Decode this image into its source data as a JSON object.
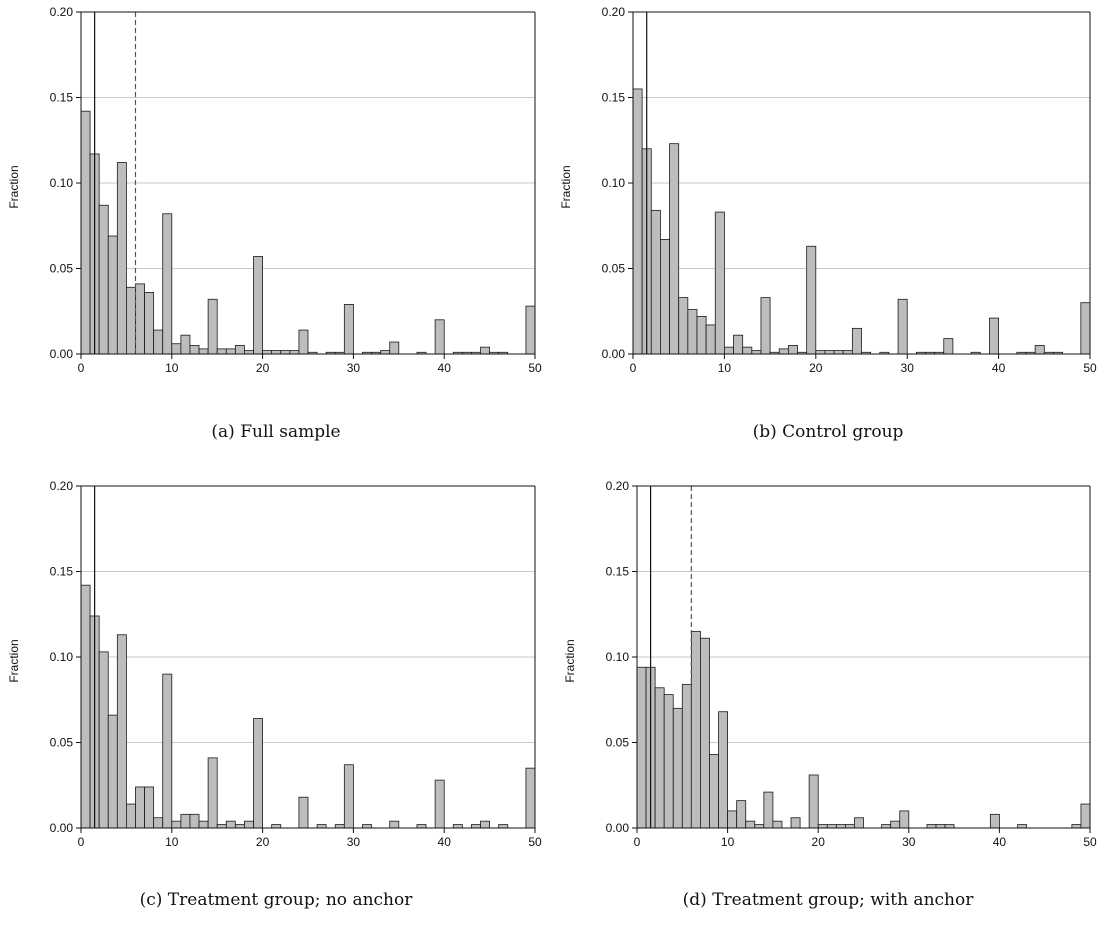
{
  "panels": [
    {
      "caption": "(a) Full sample",
      "chart_data": {
        "type": "bar",
        "ylabel": "Fraction",
        "xlabel": "",
        "xlim": [
          0,
          50
        ],
        "ylim": [
          0,
          0.2
        ],
        "xticks": [
          0,
          10,
          20,
          30,
          40,
          50
        ],
        "yticks": [
          0.0,
          0.05,
          0.1,
          0.15,
          0.2
        ],
        "ytick_labels": [
          "0.00",
          "0.05",
          "0.10",
          "0.15",
          "0.20"
        ],
        "grid": "horizontal",
        "bin_width": 1,
        "bin_starts": [
          0,
          1,
          2,
          3,
          4,
          5,
          6,
          7,
          8,
          9,
          10,
          11,
          12,
          13,
          14,
          15,
          16,
          17,
          18,
          19,
          20,
          21,
          22,
          23,
          24,
          25,
          26,
          27,
          28,
          29,
          30,
          31,
          32,
          33,
          34,
          35,
          36,
          37,
          38,
          39,
          40,
          41,
          42,
          43,
          44,
          45,
          46,
          47,
          48,
          49
        ],
        "values": [
          0.142,
          0.117,
          0.087,
          0.069,
          0.112,
          0.039,
          0.041,
          0.036,
          0.014,
          0.082,
          0.006,
          0.011,
          0.005,
          0.003,
          0.032,
          0.003,
          0.003,
          0.005,
          0.002,
          0.057,
          0.002,
          0.002,
          0.002,
          0.002,
          0.014,
          0.001,
          0.0,
          0.001,
          0.001,
          0.029,
          0.0,
          0.001,
          0.001,
          0.002,
          0.007,
          0.0,
          0.0,
          0.001,
          0.0,
          0.02,
          0.0,
          0.001,
          0.001,
          0.001,
          0.004,
          0.001,
          0.001,
          0.0,
          0.0,
          0.028
        ],
        "vlines": [
          {
            "x": 1.5,
            "style": "solid"
          },
          {
            "x": 6.0,
            "style": "dashed"
          }
        ]
      }
    },
    {
      "caption": "(b) Control group",
      "chart_data": {
        "type": "bar",
        "ylabel": "Fraction",
        "xlabel": "",
        "xlim": [
          0,
          50
        ],
        "ylim": [
          0,
          0.2
        ],
        "xticks": [
          0,
          10,
          20,
          30,
          40,
          50
        ],
        "yticks": [
          0.0,
          0.05,
          0.1,
          0.15,
          0.2
        ],
        "ytick_labels": [
          "0.00",
          "0.05",
          "0.10",
          "0.15",
          "0.20"
        ],
        "grid": "horizontal",
        "bin_width": 1,
        "bin_starts": [
          0,
          1,
          2,
          3,
          4,
          5,
          6,
          7,
          8,
          9,
          10,
          11,
          12,
          13,
          14,
          15,
          16,
          17,
          18,
          19,
          20,
          21,
          22,
          23,
          24,
          25,
          26,
          27,
          28,
          29,
          30,
          31,
          32,
          33,
          34,
          35,
          36,
          37,
          38,
          39,
          40,
          41,
          42,
          43,
          44,
          45,
          46,
          47,
          48,
          49
        ],
        "values": [
          0.155,
          0.12,
          0.084,
          0.067,
          0.123,
          0.033,
          0.026,
          0.022,
          0.017,
          0.083,
          0.004,
          0.011,
          0.004,
          0.002,
          0.033,
          0.001,
          0.003,
          0.005,
          0.001,
          0.063,
          0.002,
          0.002,
          0.002,
          0.002,
          0.015,
          0.001,
          0.0,
          0.001,
          0.0,
          0.032,
          0.0,
          0.001,
          0.001,
          0.001,
          0.009,
          0.0,
          0.0,
          0.001,
          0.0,
          0.021,
          0.0,
          0.0,
          0.001,
          0.001,
          0.005,
          0.001,
          0.001,
          0.0,
          0.0,
          0.03
        ],
        "vlines": [
          {
            "x": 1.5,
            "style": "solid"
          }
        ]
      }
    },
    {
      "caption": "(c) Treatment group; no anchor",
      "chart_data": {
        "type": "bar",
        "ylabel": "Fraction",
        "xlabel": "",
        "xlim": [
          0,
          50
        ],
        "ylim": [
          0,
          0.2
        ],
        "xticks": [
          0,
          10,
          20,
          30,
          40,
          50
        ],
        "yticks": [
          0.0,
          0.05,
          0.1,
          0.15,
          0.2
        ],
        "ytick_labels": [
          "0.00",
          "0.05",
          "0.10",
          "0.15",
          "0.20"
        ],
        "grid": "horizontal",
        "bin_width": 1,
        "bin_starts": [
          0,
          1,
          2,
          3,
          4,
          5,
          6,
          7,
          8,
          9,
          10,
          11,
          12,
          13,
          14,
          15,
          16,
          17,
          18,
          19,
          20,
          21,
          22,
          23,
          24,
          25,
          26,
          27,
          28,
          29,
          30,
          31,
          32,
          33,
          34,
          35,
          36,
          37,
          38,
          39,
          40,
          41,
          42,
          43,
          44,
          45,
          46,
          47,
          48,
          49
        ],
        "values": [
          0.142,
          0.124,
          0.103,
          0.066,
          0.113,
          0.014,
          0.024,
          0.024,
          0.006,
          0.09,
          0.004,
          0.008,
          0.008,
          0.004,
          0.041,
          0.002,
          0.004,
          0.002,
          0.004,
          0.064,
          0.0,
          0.002,
          0.0,
          0.0,
          0.018,
          0.0,
          0.002,
          0.0,
          0.002,
          0.037,
          0.0,
          0.002,
          0.0,
          0.0,
          0.004,
          0.0,
          0.0,
          0.002,
          0.0,
          0.028,
          0.0,
          0.002,
          0.0,
          0.002,
          0.004,
          0.0,
          0.002,
          0.0,
          0.0,
          0.035
        ],
        "vlines": [
          {
            "x": 1.5,
            "style": "solid"
          }
        ]
      }
    },
    {
      "caption": "(d) Treatment group; with anchor",
      "chart_data": {
        "type": "bar",
        "ylabel": "Fraction",
        "xlabel": "",
        "xlim": [
          0,
          50
        ],
        "ylim": [
          0,
          0.2
        ],
        "xticks": [
          0,
          10,
          20,
          30,
          40,
          50
        ],
        "yticks": [
          0.0,
          0.05,
          0.1,
          0.15,
          0.2
        ],
        "ytick_labels": [
          "0.00",
          "0.05",
          "0.10",
          "0.15",
          "0.20"
        ],
        "grid": "horizontal",
        "bin_width": 1,
        "bin_starts": [
          0,
          1,
          2,
          3,
          4,
          5,
          6,
          7,
          8,
          9,
          10,
          11,
          12,
          13,
          14,
          15,
          16,
          17,
          18,
          19,
          20,
          21,
          22,
          23,
          24,
          25,
          26,
          27,
          28,
          29,
          30,
          31,
          32,
          33,
          34,
          35,
          36,
          37,
          38,
          39,
          40,
          41,
          42,
          43,
          44,
          45,
          46,
          47,
          48,
          49
        ],
        "values": [
          0.094,
          0.094,
          0.082,
          0.078,
          0.07,
          0.084,
          0.115,
          0.111,
          0.043,
          0.068,
          0.01,
          0.016,
          0.004,
          0.002,
          0.021,
          0.004,
          0.0,
          0.006,
          0.0,
          0.031,
          0.002,
          0.002,
          0.002,
          0.002,
          0.006,
          0.0,
          0.0,
          0.002,
          0.004,
          0.01,
          0.0,
          0.0,
          0.002,
          0.002,
          0.002,
          0.0,
          0.0,
          0.0,
          0.0,
          0.008,
          0.0,
          0.0,
          0.002,
          0.0,
          0.0,
          0.0,
          0.0,
          0.0,
          0.002,
          0.014
        ],
        "vlines": [
          {
            "x": 1.5,
            "style": "solid"
          },
          {
            "x": 6.0,
            "style": "dashed"
          }
        ]
      }
    }
  ]
}
